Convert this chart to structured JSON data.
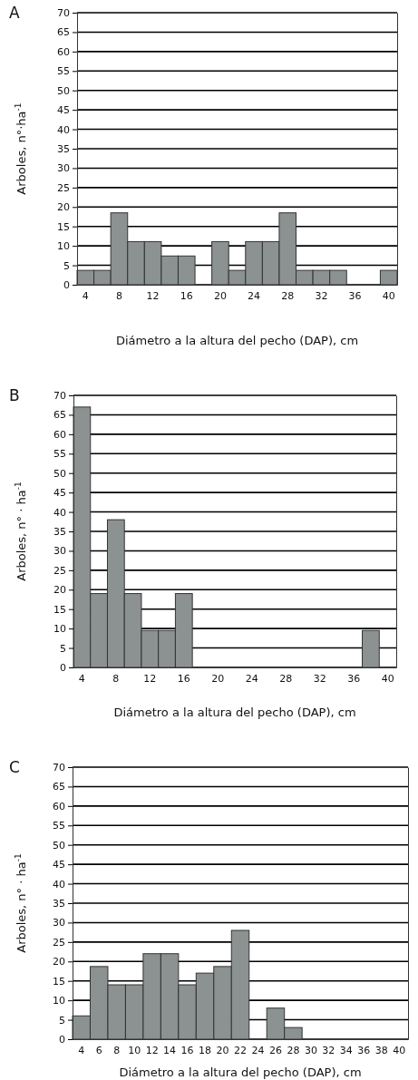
{
  "chart_data": [
    {
      "type": "bar",
      "title": "A",
      "xlabel": "Diámetro a la altura del pecho (DAP), cm",
      "ylabel": "Arboles, n°·ha$^{-1}$",
      "categories": [
        "4",
        null,
        "8",
        null,
        "12",
        null,
        "16",
        null,
        "20",
        null,
        "24",
        null,
        "28",
        null,
        "32",
        null,
        "36",
        null,
        "40"
      ],
      "values": [
        3.7,
        3.7,
        18.5,
        11.1,
        11.1,
        7.4,
        7.4,
        0,
        11.1,
        3.7,
        11.1,
        11.1,
        18.5,
        3.7,
        3.7,
        3.7,
        0,
        0,
        3.7
      ],
      "color": "#8c9191",
      "ylim": [
        0,
        70
      ],
      "yticks": [
        0,
        5,
        10,
        15,
        20,
        25,
        30,
        35,
        40,
        45,
        50,
        55,
        60,
        65,
        70
      ],
      "grid": "y"
    },
    {
      "type": "bar",
      "title": "B",
      "xlabel": "Diámetro a la altura del pecho (DAP), cm",
      "ylabel": "Arboles, n° · ha$^{-1}$",
      "categories": [
        "4",
        null,
        "8",
        null,
        "12",
        null,
        "16",
        null,
        "20",
        null,
        "24",
        null,
        "28",
        null,
        "32",
        null,
        "36",
        null,
        "40"
      ],
      "values": [
        67,
        19,
        38,
        19,
        9.5,
        9.5,
        19,
        0,
        0,
        0,
        0,
        0,
        0,
        0,
        0,
        0,
        0,
        9.5,
        0
      ],
      "color": "#8c9191",
      "ylim": [
        0,
        70
      ],
      "yticks": [
        0,
        5,
        10,
        15,
        20,
        25,
        30,
        35,
        40,
        45,
        50,
        55,
        60,
        65,
        70
      ],
      "grid": "y"
    },
    {
      "type": "bar",
      "title": "C",
      "xlabel": "Diámetro a la altura del pecho (DAP), cm",
      "ylabel": "Arboles, n° · ha$^{-1}$",
      "categories": [
        "4",
        "6",
        "8",
        "10",
        "12",
        "14",
        "16",
        "18",
        "20",
        "22",
        "24",
        "26",
        "28",
        "30",
        "32",
        "34",
        "36",
        "38",
        "40"
      ],
      "values": [
        6,
        18.7,
        14,
        14,
        22,
        22,
        14,
        17,
        18.7,
        28,
        0,
        8,
        3,
        0,
        0,
        0,
        0,
        0,
        0
      ],
      "color": "#8c9191",
      "ylim": [
        0,
        70
      ],
      "yticks": [
        0,
        5,
        10,
        15,
        20,
        25,
        30,
        35,
        40,
        45,
        50,
        55,
        60,
        65,
        70
      ],
      "grid": "y"
    }
  ]
}
